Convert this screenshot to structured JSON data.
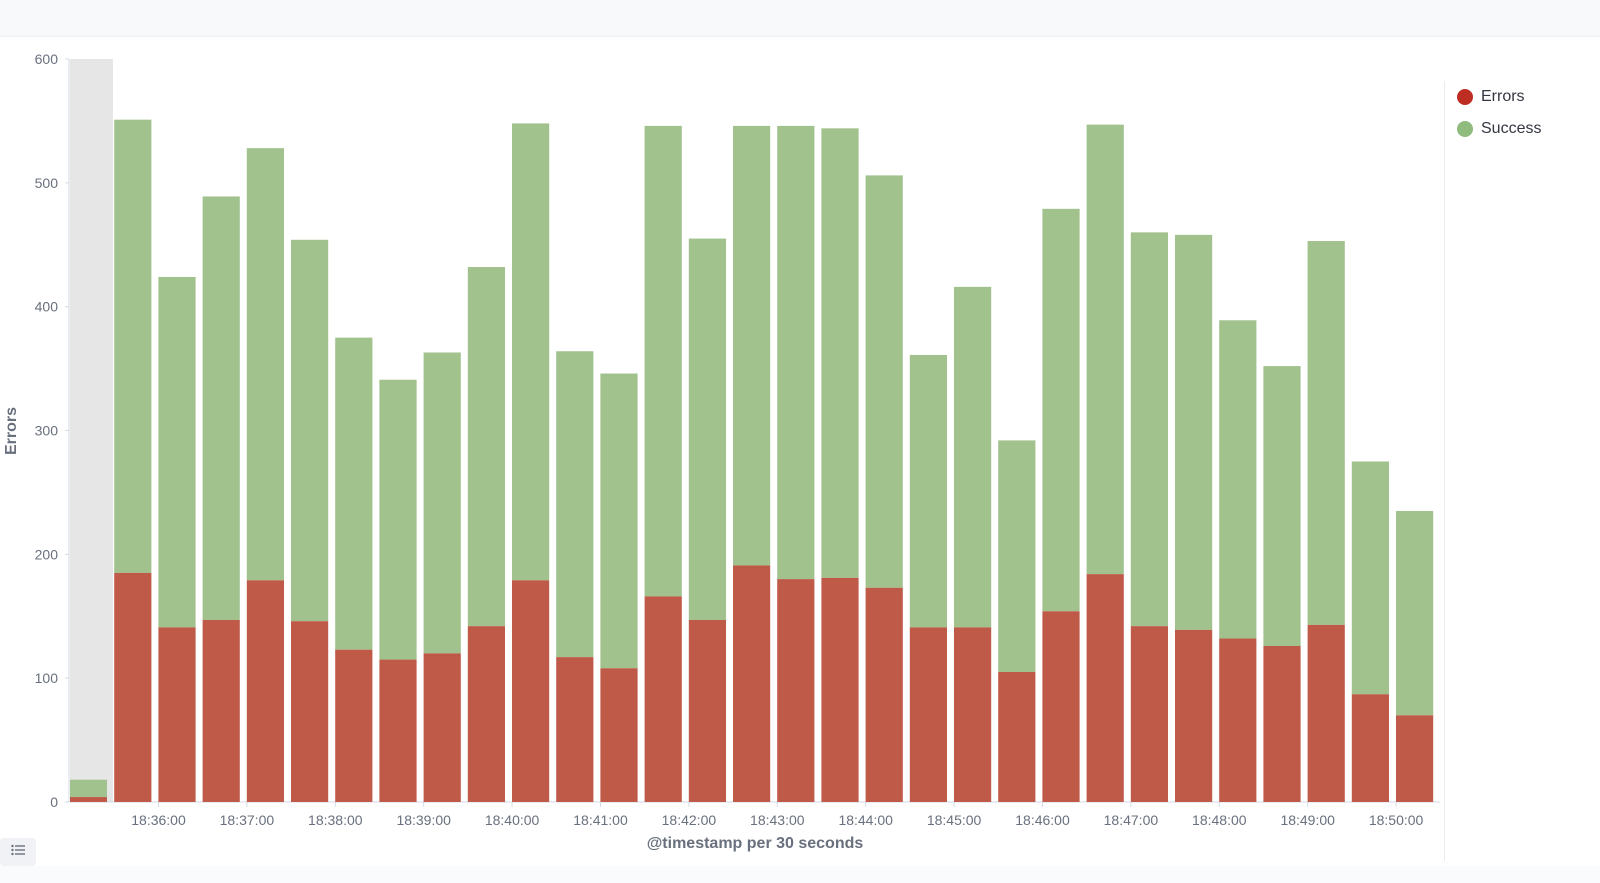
{
  "chart_data": {
    "type": "bar",
    "stacked": true,
    "xlabel": "@timestamp per 30 seconds",
    "ylabel": "Errors",
    "ylim": [
      0,
      600
    ],
    "yticks": [
      0,
      100,
      200,
      300,
      400,
      500,
      600
    ],
    "x_tick_labels": [
      "18:36:00",
      "18:37:00",
      "18:38:00",
      "18:39:00",
      "18:40:00",
      "18:41:00",
      "18:42:00",
      "18:43:00",
      "18:44:00",
      "18:45:00",
      "18:46:00",
      "18:47:00",
      "18:48:00",
      "18:49:00",
      "18:50:00"
    ],
    "grid": false,
    "legend_position": "top-right",
    "series": [
      {
        "name": "Errors",
        "color": "#bf5a49",
        "values": [
          4,
          185,
          141,
          147,
          179,
          146,
          123,
          115,
          120,
          142,
          179,
          117,
          108,
          166,
          147,
          191,
          180,
          181,
          173,
          141,
          141,
          105,
          154,
          184,
          142,
          139,
          132,
          126,
          143,
          87,
          70
        ]
      },
      {
        "name": "Success",
        "color": "#a1c18d",
        "values": [
          14,
          366,
          283,
          342,
          349,
          308,
          252,
          226,
          243,
          290,
          369,
          247,
          238,
          380,
          308,
          355,
          366,
          363,
          333,
          220,
          275,
          187,
          325,
          363,
          318,
          319,
          257,
          226,
          310,
          188,
          165
        ]
      }
    ]
  },
  "legend": {
    "items": [
      {
        "label": "Errors",
        "color": "#bf5a49",
        "dot_color": "#bd2d21"
      },
      {
        "label": "Success",
        "color": "#a1c18d",
        "dot_color": "#8fbb7e"
      }
    ]
  },
  "toolbar": {
    "toggle_icon": "list-icon"
  }
}
